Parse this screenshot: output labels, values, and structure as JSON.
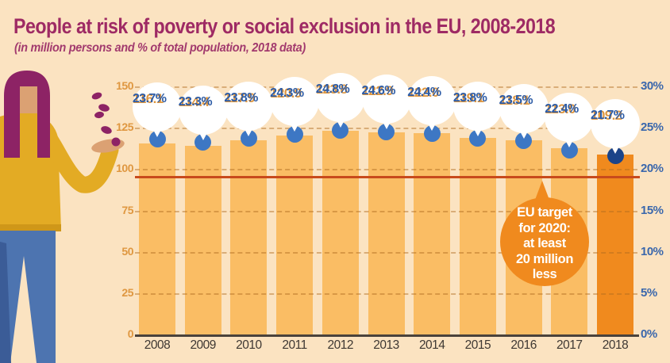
{
  "page": {
    "title": "People at risk of poverty or social exclusion in the EU, 2008-2018",
    "subtitle": "(in million persons and % of total population, 2018 data)"
  },
  "chart_data": {
    "type": "bar",
    "title": "People at risk of poverty or social exclusion in the EU, 2008-2018",
    "subtitle": "(in million persons and % of total population, 2018 data)",
    "categories": [
      "2008",
      "2009",
      "2010",
      "2011",
      "2012",
      "2013",
      "2014",
      "2015",
      "2016",
      "2017",
      "2018"
    ],
    "series": [
      {
        "name": "million persons",
        "values": [
          116.1,
          114.4,
          117.9,
          120.9,
          123.8,
          122.9,
          122.0,
          119.1,
          118.1,
          113.0,
          109.2
        ]
      },
      {
        "name": "% of total population",
        "values": [
          23.7,
          23.3,
          23.8,
          24.3,
          24.8,
          24.6,
          24.4,
          23.8,
          23.5,
          22.4,
          21.7
        ]
      }
    ],
    "labels_millions": [
      "116.1",
      "114.4",
      "117.9",
      "120.9",
      "123.8",
      "122.9",
      "122.0",
      "119.1",
      "118.1",
      "113.0",
      "109.2"
    ],
    "labels_percent": [
      "23.7%",
      "23.3%",
      "23.8%",
      "24.3%",
      "24.8%",
      "24.6%",
      "24.4%",
      "23.8%",
      "23.5%",
      "22.4%",
      "21.7%"
    ],
    "left_axis": {
      "ticks": [
        "0",
        "25",
        "50",
        "75",
        "100",
        "125",
        "150"
      ],
      "range": [
        0,
        150
      ],
      "grid": true
    },
    "right_axis": {
      "ticks": [
        "0%",
        "5%",
        "10%",
        "15%",
        "20%",
        "25%",
        "30%"
      ],
      "range": [
        0,
        30
      ]
    },
    "annotation": {
      "text_lines": [
        "EU target",
        "for 2020:",
        "at least",
        "20 million",
        "less"
      ],
      "target_line_millions": 96
    },
    "highlight_year": "2018",
    "legend": "none",
    "colors": {
      "background": "#fbe3c1",
      "bar": "#fabd64",
      "bar_highlight": "#f08a1e",
      "dot": "#3d77c4",
      "dot_highlight": "#1b4489",
      "title_text": "#9e2a64",
      "millions_text": "#df9740",
      "percent_text": "#2d5ca6",
      "right_axis_text": "#3a67ac",
      "year_text": "#3e3833",
      "target_line": "#c84a1c",
      "annotation_bubble": "#f08a1e",
      "annotation_text": "#ffffff"
    }
  }
}
